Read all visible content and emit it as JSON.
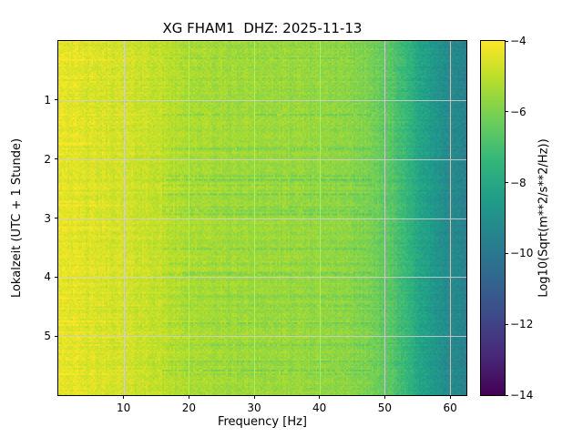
{
  "chart_data": {
    "type": "heatmap",
    "subtype": "spectrogram",
    "title": "XG FHAM1  DHZ: 2025-11-13",
    "station": "XG FHAM1",
    "channel": "DHZ",
    "date": "2025-11-13",
    "xlabel": "Frequency [Hz]",
    "ylabel": "Lokalzeit (UTC + 1 Stunde)",
    "x_range": [
      0,
      62.5
    ],
    "x_ticks": [
      10,
      20,
      30,
      40,
      50,
      60
    ],
    "y_range": [
      0,
      6
    ],
    "y_ticks": [
      1,
      2,
      3,
      4,
      5
    ],
    "grid": true,
    "grid_color": "#d0d0d0",
    "colormap": "viridis",
    "colorbar": {
      "label": "Log10(Sqrt(m**2/s**2/Hz))",
      "range": [
        -14,
        -4
      ],
      "ticks": [
        -4,
        -6,
        -8,
        -10,
        -12,
        -14
      ]
    },
    "value_vs_frequency": [
      [
        0,
        -4.3
      ],
      [
        4,
        -4.55
      ],
      [
        10,
        -4.7
      ],
      [
        15,
        -4.9
      ],
      [
        19,
        -5.25
      ],
      [
        26,
        -5.45
      ],
      [
        34,
        -5.55
      ],
      [
        42,
        -5.7
      ],
      [
        47,
        -5.95
      ],
      [
        50,
        -6.4
      ],
      [
        53,
        -7.3
      ],
      [
        56,
        -8.3
      ],
      [
        59,
        -9.1
      ],
      [
        62.5,
        -9.5
      ]
    ],
    "noise_amplitude": 0.5,
    "viridis_stops": [
      "#440154",
      "#482878",
      "#3e4989",
      "#31688e",
      "#26828e",
      "#1f9e89",
      "#35b779",
      "#6ece58",
      "#b5de2b",
      "#fde725"
    ]
  }
}
